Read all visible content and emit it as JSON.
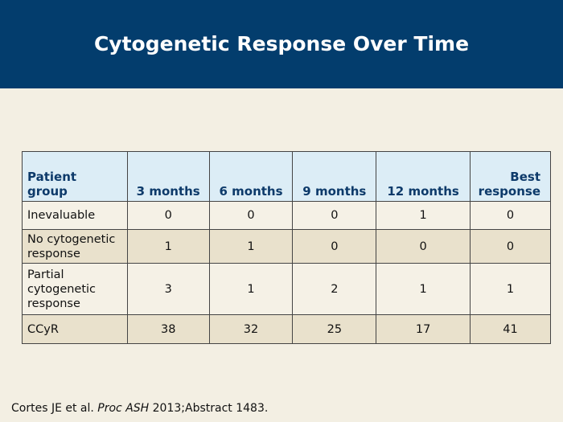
{
  "title": "Cytogenetic Response Over Time",
  "table": {
    "headers": {
      "group_line1": "Patient",
      "group_line2": "group",
      "m3": "3 months",
      "m6": "6 months",
      "m9": "9 months",
      "m12": "12 months",
      "best_line1": "Best",
      "best_line2": "response"
    },
    "rows": [
      {
        "group": "Inevaluable",
        "m3": "0",
        "m6": "0",
        "m9": "0",
        "m12": "1",
        "best": "0"
      },
      {
        "group": "No cytogenetic response",
        "m3": "1",
        "m6": "1",
        "m9": "0",
        "m12": "0",
        "best": "0"
      },
      {
        "group": "Partial cytogenetic response",
        "m3": "3",
        "m6": "1",
        "m9": "2",
        "m12": "1",
        "best": "1"
      },
      {
        "group": "CCyR",
        "m3": "38",
        "m6": "32",
        "m9": "25",
        "m12": "17",
        "best": "41"
      }
    ]
  },
  "source": {
    "authors": "Cortes JE et al. ",
    "journal": "Proc ASH",
    "rest": " 2013;Abstract 1483."
  },
  "colors": {
    "header_band": "#033d6d",
    "table_header": "#dcedf6",
    "row_light": "#f5f1e6",
    "row_dark": "#e9e1cc"
  }
}
